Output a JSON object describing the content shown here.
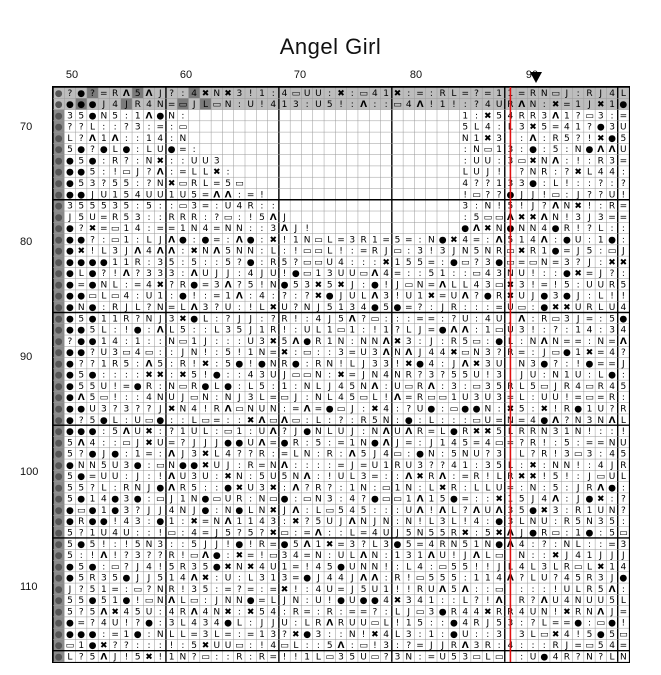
{
  "title": "Angel Girl",
  "x_labels": [
    "50",
    "60",
    "70",
    "80",
    "90"
  ],
  "y_labels": [
    "70",
    "80",
    "90",
    "100",
    "110"
  ],
  "colors": {
    "grid_line": "#9a9a9a",
    "major_grid": "#000000",
    "center_line": "#e01010",
    "faded_row_bg": "#bdbdbd",
    "gray_cell": "#7a7a7a",
    "dark_cell": "#3a3a3a",
    "symbol": "#000000"
  },
  "legend_symbols": [
    "●",
    "✖",
    "Λ",
    "L",
    "N",
    "R",
    "3",
    "5",
    "?",
    "!",
    "1",
    "J",
    "U",
    "4",
    ":",
    "▭",
    "="
  ],
  "chart_data": {
    "type": "cross-stitch-chart",
    "columns_start": 50,
    "rows_start": 70,
    "grid": {
      "columns": 51,
      "rows": 51
    }
  }
}
